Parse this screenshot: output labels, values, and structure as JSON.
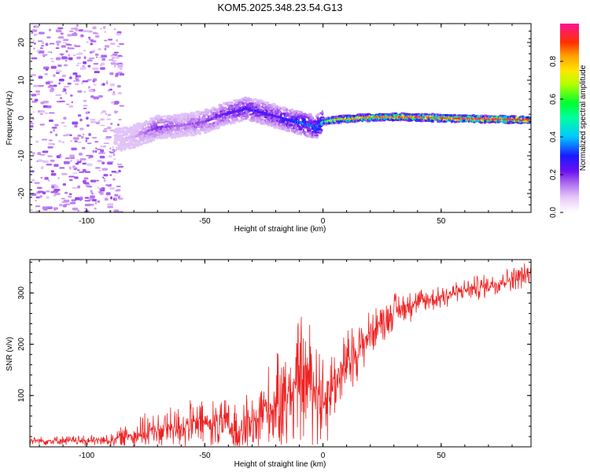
{
  "title": "KOM5.2025.348.23.54.G13",
  "chart_data": [
    {
      "type": "heatmap",
      "name": "spectrogram",
      "title": "KOM5.2025.348.23.54.G13",
      "xlabel": "Height of straight line (km)",
      "ylabel": "Frequency (Hz)",
      "xlim": [
        -124,
        88
      ],
      "ylim": [
        -25,
        25
      ],
      "xticks": [
        -100,
        -50,
        0,
        50
      ],
      "xtick_labels": [
        "-100",
        "-50",
        "0",
        "50"
      ],
      "yticks": [
        -20,
        -10,
        0,
        10,
        20
      ],
      "ytick_labels": [
        "-20",
        "-10",
        "0",
        "10",
        "20"
      ],
      "ridge_x": [
        -88,
        -80,
        -70,
        -60,
        -50,
        -42,
        -32,
        -20,
        -12,
        -8,
        -3,
        0,
        5,
        15,
        30,
        50,
        70,
        88
      ],
      "ridge_y": [
        -6,
        -5,
        -2.5,
        -2,
        -1,
        1,
        2.5,
        0.5,
        -1,
        -1.5,
        -2.5,
        -1,
        -0.5,
        0,
        0.3,
        0,
        -0.3,
        -0.5
      ],
      "ridge_amplitude": [
        0.05,
        0.08,
        0.22,
        0.15,
        0.2,
        0.25,
        0.3,
        0.28,
        0.35,
        0.42,
        0.38,
        0.5,
        0.75,
        0.85,
        0.9,
        0.95,
        0.98,
        0.98
      ],
      "noise_region_x": [
        -124,
        -86
      ],
      "colorbar": {
        "label": "Normalized spectral amplitude",
        "range": [
          0,
          1
        ],
        "ticks": [
          0.0,
          0.2,
          0.4,
          0.6,
          0.8
        ],
        "tick_labels": [
          "0.0",
          "0.2",
          "0.4",
          "0.6",
          "0.8"
        ],
        "colors": [
          "#ffffff",
          "#c890f0",
          "#7a1cf0",
          "#1c1cff",
          "#00c8ff",
          "#00ff64",
          "#e6ff00",
          "#ffb400",
          "#ff3c00",
          "#ff1493"
        ]
      }
    },
    {
      "type": "line",
      "name": "snr",
      "xlabel": "Height of straight line (km)",
      "ylabel": "SNR (v/v)",
      "xlim": [
        -124,
        88
      ],
      "ylim": [
        0,
        365
      ],
      "xticks": [
        -100,
        -50,
        0,
        50
      ],
      "xtick_labels": [
        "-100",
        "-50",
        "0",
        "50"
      ],
      "yticks": [
        100,
        200,
        300
      ],
      "ytick_labels": [
        "100",
        "200",
        "300"
      ],
      "color": "#ee2222",
      "trend_x": [
        -124,
        -90,
        -85,
        -70,
        -60,
        -50,
        -40,
        -35,
        -25,
        -15,
        -10,
        -5,
        0,
        10,
        20,
        25,
        30,
        40,
        50,
        60,
        70,
        80,
        88
      ],
      "trend_y": [
        12,
        12,
        20,
        32,
        40,
        45,
        40,
        28,
        75,
        90,
        135,
        130,
        90,
        160,
        220,
        245,
        265,
        282,
        292,
        305,
        315,
        328,
        338
      ],
      "noise_amplitude_x": [
        -124,
        -90,
        -70,
        -40,
        -30,
        -20,
        -10,
        0,
        10,
        20,
        40,
        60,
        88
      ],
      "noise_amplitude": [
        6,
        8,
        28,
        35,
        45,
        60,
        80,
        70,
        45,
        30,
        20,
        16,
        16
      ]
    }
  ]
}
